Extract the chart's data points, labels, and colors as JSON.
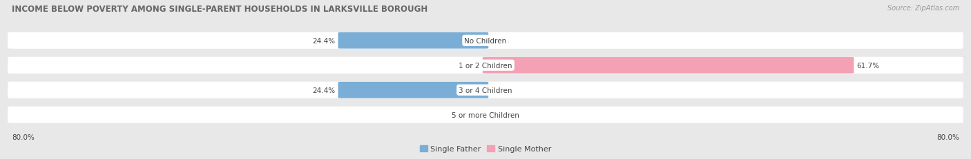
{
  "title": "INCOME BELOW POVERTY AMONG SINGLE-PARENT HOUSEHOLDS IN LARKSVILLE BOROUGH",
  "source": "Source: ZipAtlas.com",
  "categories": [
    "No Children",
    "1 or 2 Children",
    "3 or 4 Children",
    "5 or more Children"
  ],
  "single_father": [
    24.4,
    0.0,
    24.4,
    0.0
  ],
  "single_mother": [
    0.0,
    61.7,
    0.0,
    0.0
  ],
  "father_color": "#7aaed6",
  "mother_color": "#f4a0b5",
  "father_label": "Single Father",
  "mother_label": "Single Mother",
  "axis_max": 80.0,
  "axis_label_left": "80.0%",
  "axis_label_right": "80.0%",
  "page_bg": "#e8e8e8",
  "row_bg": "#ffffff",
  "bar_bg": "#dcdcdc",
  "title_color": "#666666",
  "label_color": "#444444",
  "source_color": "#999999",
  "title_fontsize": 8.5,
  "source_fontsize": 7.0,
  "value_fontsize": 7.5,
  "category_fontsize": 7.5,
  "legend_fontsize": 8.0
}
